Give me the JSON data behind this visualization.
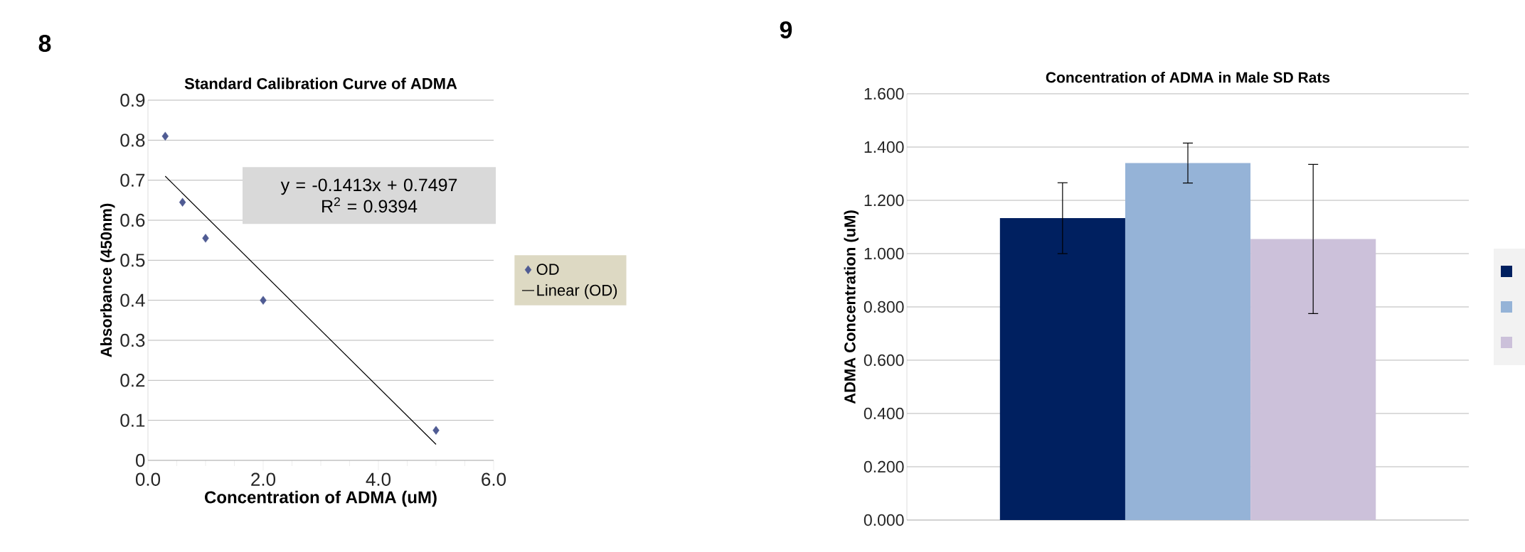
{
  "chart_data": [
    {
      "type": "scatter",
      "title": "Standard Calibration Curve of  ADMA",
      "xlabel": "Concentration of ADMA (uM)",
      "ylabel": "Absorbance (450nm)",
      "annotations": [
        "8",
        "y = -0.1413x + 0.7497",
        "R$^{2}$ = 0.9394"
      ],
      "series": [
        {
          "name": "OD",
          "type": "scatter",
          "marker": "diamond",
          "color": "#4f5b93",
          "x": [
            0.3,
            0.6,
            1.0,
            2.0,
            5.0
          ],
          "values": [
            0.81,
            0.645,
            0.555,
            0.4,
            0.075
          ]
        },
        {
          "name": "Linear (OD)",
          "type": "line",
          "color": "#000000",
          "x": [
            0.3,
            5.0
          ],
          "values": [
            0.71,
            0.04
          ]
        }
      ],
      "xlim": [
        0,
        6
      ],
      "xticks": [
        {
          "value": 0,
          "label": "0.0"
        },
        {
          "value": 2,
          "label": "2.0"
        },
        {
          "value": 4,
          "label": "4.0"
        },
        {
          "value": 6,
          "label": "6.0"
        }
      ],
      "ylim": [
        0,
        0.9
      ],
      "yticks": [
        0,
        0.1,
        0.2,
        0.3,
        0.4,
        0.5,
        0.6,
        0.7,
        0.8,
        0.9
      ],
      "grid": "y",
      "legend": "right"
    },
    {
      "type": "bar",
      "title": "Concentration of ADMA in Male SD Rats",
      "ylabel": "ADMA Concentration (uM)",
      "annotations": [
        "9"
      ],
      "categories": [
        null
      ],
      "series": [
        {
          "color": "#002060",
          "values": [
            1.133
          ],
          "errors": [
            0.133
          ]
        },
        {
          "color": "#95b3d7",
          "values": [
            1.34
          ],
          "errors": [
            0.075
          ]
        },
        {
          "color": "#ccc1da",
          "values": [
            1.055
          ],
          "errors": [
            0.28
          ]
        }
      ],
      "ylim": [
        0,
        1.6
      ],
      "yticks": [
        {
          "value": 0,
          "label": "0.000"
        },
        {
          "value": 0.2,
          "label": "0.200"
        },
        {
          "value": 0.4,
          "label": "0.400"
        },
        {
          "value": 0.6,
          "label": "0.600"
        },
        {
          "value": 0.8,
          "label": "0.800"
        },
        {
          "value": 1.0,
          "label": "1.000"
        },
        {
          "value": 1.2,
          "label": "1.200"
        },
        {
          "value": 1.4,
          "label": "1.400"
        },
        {
          "value": 1.6,
          "label": "1.600"
        }
      ],
      "grid": "y"
    }
  ]
}
